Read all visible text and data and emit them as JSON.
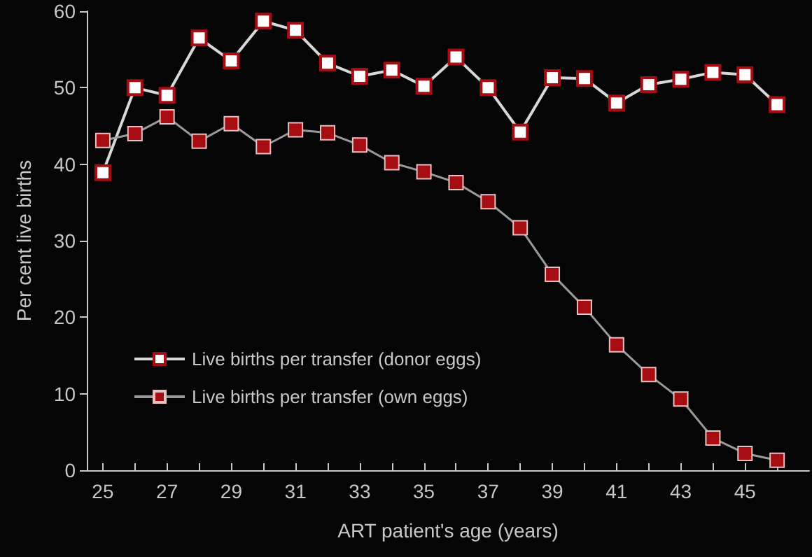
{
  "chart_data": {
    "type": "line",
    "xlabel": "ART patient's age (years)",
    "ylabel": "Per cent live births",
    "x": [
      25,
      26,
      27,
      28,
      29,
      30,
      31,
      32,
      33,
      34,
      35,
      36,
      37,
      38,
      39,
      40,
      41,
      42,
      43,
      44,
      45,
      46
    ],
    "series": [
      {
        "name": "Live births per transfer (donor eggs)",
        "color": "#ffffff",
        "values": [
          38.9,
          50,
          49,
          56.5,
          53.5,
          58.7,
          57.5,
          53.2,
          51.5,
          52.3,
          50.2,
          54,
          50,
          44.2,
          51.3,
          51.2,
          48,
          50.4,
          51.1,
          52,
          51.7,
          47.8
        ]
      },
      {
        "name": "Live births per transfer (own eggs)",
        "color": "#a50d12",
        "values": [
          43.1,
          44,
          46.2,
          43,
          45.3,
          42.3,
          44.5,
          44.1,
          42.5,
          40.2,
          39,
          37.6,
          35.1,
          31.7,
          25.6,
          21.3,
          16.4,
          12.5,
          9.3,
          4.2,
          2.2,
          1.3
        ]
      }
    ],
    "xlim": [
      24.5,
      47
    ],
    "xticks": [
      25,
      {
        "value": 26,
        "label": null
      },
      27,
      {
        "value": 28,
        "label": null
      },
      29,
      {
        "value": 30,
        "label": null
      },
      31,
      {
        "value": 32,
        "label": null
      },
      33,
      {
        "value": 34,
        "label": null
      },
      35,
      {
        "value": 36,
        "label": null
      },
      37,
      {
        "value": 38,
        "label": null
      },
      39,
      {
        "value": 40,
        "label": null
      },
      41,
      {
        "value": 42,
        "label": null
      },
      43,
      {
        "value": 44,
        "label": null
      },
      45,
      {
        "value": 46,
        "label": null
      }
    ],
    "ylim": [
      0,
      60
    ],
    "yticks": [
      0,
      10,
      20,
      30,
      40,
      50,
      60
    ],
    "grid": false,
    "legend": "left",
    "marker": "square"
  }
}
